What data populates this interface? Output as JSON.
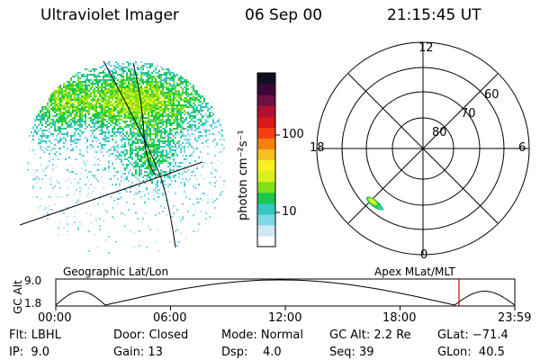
{
  "header": {
    "instrument": "Ultraviolet Imager",
    "date": "06 Sep 00",
    "time": "21:15:45 UT"
  },
  "colorbar": {
    "unit_label": "photon cm⁻²s⁻¹",
    "ticks": [
      "100",
      "10"
    ],
    "scale": "log",
    "colors": [
      "#ffffff",
      "#cfe8f5",
      "#7fd8e8",
      "#35c8c0",
      "#19c84a",
      "#7fe019",
      "#d8f020",
      "#f8f020",
      "#f8c020",
      "#f88010",
      "#f04010",
      "#d81818",
      "#b01030",
      "#701040",
      "#3a0838",
      "#101020"
    ]
  },
  "polar_plot": {
    "mlt_labels": {
      "top": "12",
      "left": "18",
      "right": "6",
      "bottom": "0"
    },
    "lat_labels": [
      "80",
      "70",
      "60"
    ]
  },
  "timeline": {
    "left_title": "Geographic Lat/Lon",
    "right_title": "Apex MLat/MLT",
    "axis_label": "GC Alt",
    "y_ticks": [
      "9.0",
      "1.8"
    ],
    "x_ticks": [
      "00:00",
      "06:00",
      "12:00",
      "18:00",
      "23:59"
    ],
    "marker_color": "#cc0000"
  },
  "status": {
    "row1": {
      "flt": "Flt: LBHL",
      "door": "Door: Closed",
      "mode": "Mode: Normal",
      "gcalt": "GC Alt: 2.2 Re",
      "glat": "GLat: −71.4"
    },
    "row2": {
      "ip": "IP:  9.0",
      "gain": "Gain: 13",
      "dsp": "Dsp:    4.0",
      "seq": "Seq: 39",
      "glon": "GLon:  40.5"
    }
  }
}
